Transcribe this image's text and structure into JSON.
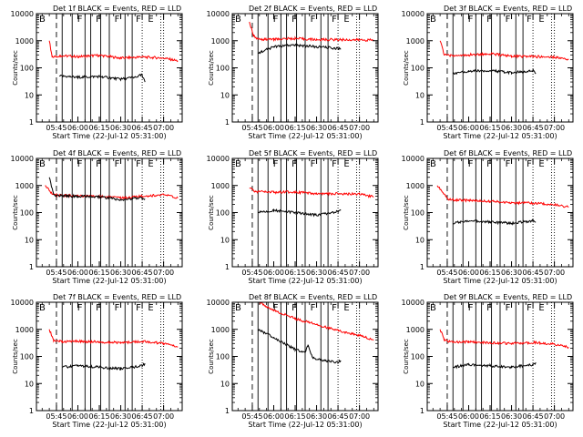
{
  "colors": {
    "events": "#000000",
    "lld": "#ff0000",
    "axes": "#000000",
    "background": "#ffffff"
  },
  "chart_data": {
    "type": "line",
    "layout": "3x3 grid",
    "shared": {
      "xlabel": "Start Time (22-Jul-12 05:31:00)",
      "ylabel": "Counts/sec",
      "yscale": "log",
      "ylim": [
        1,
        10000
      ],
      "xlim": [
        "05:31",
        "07:13"
      ],
      "xticks": [
        "05:45",
        "06:00",
        "06:15",
        "06:30",
        "06:45",
        "07:00"
      ],
      "yticks": [
        "1",
        "10",
        "100",
        "1000",
        "10000"
      ],
      "dashed_marker": "05:45",
      "solid_markers": [
        "05:49",
        "05:56",
        "06:05",
        "06:09",
        "06:16",
        "06:22",
        "06:33",
        "06:38"
      ],
      "dotted_markers": [
        "06:45",
        "06:58",
        "07:00"
      ],
      "letter_annotations": [
        "B",
        "F",
        "F",
        "F",
        "F",
        "E"
      ],
      "series_legend": {
        "black": "Events",
        "red": "LLD"
      }
    },
    "panels": [
      {
        "title": "Det 1f  BLACK = Events, RED = LLD",
        "series": [
          {
            "name": "LLD",
            "color": "red",
            "points": [
              [
                "05:40",
                1000
              ],
              [
                "05:42",
                250
              ],
              [
                "05:48",
                280
              ],
              [
                "06:00",
                260
              ],
              [
                "06:15",
                290
              ],
              [
                "06:30",
                230
              ],
              [
                "06:45",
                250
              ],
              [
                "07:00",
                230
              ],
              [
                "07:10",
                180
              ]
            ]
          },
          {
            "name": "Events",
            "color": "black",
            "points": [
              [
                "05:47",
                50
              ],
              [
                "06:00",
                45
              ],
              [
                "06:15",
                48
              ],
              [
                "06:30",
                38
              ],
              [
                "06:40",
                45
              ],
              [
                "06:45",
                55
              ],
              [
                "06:47",
                30
              ]
            ]
          }
        ]
      },
      {
        "title": "Det 2f  BLACK = Events, RED = LLD",
        "series": [
          {
            "name": "LLD",
            "color": "red",
            "points": [
              [
                "05:43",
                5000
              ],
              [
                "05:46",
                1500
              ],
              [
                "05:50",
                1100
              ],
              [
                "06:00",
                1150
              ],
              [
                "06:15",
                1200
              ],
              [
                "06:30",
                1100
              ],
              [
                "06:45",
                1100
              ],
              [
                "07:10",
                1050
              ]
            ]
          },
          {
            "name": "Events",
            "color": "black",
            "points": [
              [
                "05:49",
                350
              ],
              [
                "06:00",
                600
              ],
              [
                "06:15",
                700
              ],
              [
                "06:30",
                600
              ],
              [
                "06:45",
                520
              ],
              [
                "06:47",
                480
              ]
            ]
          }
        ]
      },
      {
        "title": "Det 3f  BLACK = Events, RED = LLD",
        "series": [
          {
            "name": "LLD",
            "color": "red",
            "points": [
              [
                "05:40",
                1000
              ],
              [
                "05:43",
                300
              ],
              [
                "05:50",
                280
              ],
              [
                "06:00",
                300
              ],
              [
                "06:15",
                330
              ],
              [
                "06:30",
                270
              ],
              [
                "06:45",
                260
              ],
              [
                "07:00",
                250
              ],
              [
                "07:10",
                200
              ]
            ]
          },
          {
            "name": "Events",
            "color": "black",
            "points": [
              [
                "05:49",
                60
              ],
              [
                "06:00",
                75
              ],
              [
                "06:15",
                80
              ],
              [
                "06:30",
                65
              ],
              [
                "06:45",
                80
              ],
              [
                "06:47",
                60
              ]
            ]
          }
        ]
      },
      {
        "title": "Det 4f  BLACK = Events, RED = LLD",
        "series": [
          {
            "name": "LLD",
            "color": "red",
            "points": [
              [
                "05:37",
                1000
              ],
              [
                "05:42",
                500
              ],
              [
                "05:46",
                430
              ],
              [
                "06:00",
                420
              ],
              [
                "06:15",
                400
              ],
              [
                "06:30",
                350
              ],
              [
                "06:45",
                400
              ],
              [
                "07:00",
                450
              ],
              [
                "07:10",
                350
              ]
            ]
          },
          {
            "name": "Events",
            "color": "black",
            "points": [
              [
                "05:40",
                2000
              ],
              [
                "05:43",
                450
              ],
              [
                "05:48",
                420
              ],
              [
                "06:00",
                400
              ],
              [
                "06:15",
                380
              ],
              [
                "06:30",
                300
              ],
              [
                "06:45",
                350
              ],
              [
                "06:47",
                320
              ]
            ]
          }
        ]
      },
      {
        "title": "Det 5f  BLACK = Events, RED = LLD",
        "series": [
          {
            "name": "LLD",
            "color": "red",
            "points": [
              [
                "05:43",
                800
              ],
              [
                "05:47",
                600
              ],
              [
                "06:00",
                560
              ],
              [
                "06:15",
                580
              ],
              [
                "06:30",
                480
              ],
              [
                "06:45",
                500
              ],
              [
                "07:00",
                480
              ],
              [
                "07:10",
                380
              ]
            ]
          },
          {
            "name": "Events",
            "color": "black",
            "points": [
              [
                "05:49",
                100
              ],
              [
                "06:00",
                120
              ],
              [
                "06:15",
                100
              ],
              [
                "06:30",
                80
              ],
              [
                "06:45",
                110
              ],
              [
                "06:47",
                120
              ]
            ]
          }
        ]
      },
      {
        "title": "Det 6f  BLACK = Events, RED = LLD",
        "series": [
          {
            "name": "LLD",
            "color": "red",
            "points": [
              [
                "05:38",
                1000
              ],
              [
                "05:44",
                400
              ],
              [
                "05:46",
                300
              ],
              [
                "06:00",
                280
              ],
              [
                "06:15",
                260
              ],
              [
                "06:30",
                230
              ],
              [
                "06:45",
                220
              ],
              [
                "07:00",
                200
              ],
              [
                "07:10",
                160
              ]
            ]
          },
          {
            "name": "Events",
            "color": "black",
            "points": [
              [
                "05:49",
                40
              ],
              [
                "06:00",
                50
              ],
              [
                "06:15",
                45
              ],
              [
                "06:30",
                40
              ],
              [
                "06:45",
                50
              ],
              [
                "06:47",
                45
              ]
            ]
          }
        ]
      },
      {
        "title": "Det 7f  BLACK = Events, RED = LLD",
        "series": [
          {
            "name": "LLD",
            "color": "red",
            "points": [
              [
                "05:40",
                1000
              ],
              [
                "05:43",
                400
              ],
              [
                "05:49",
                350
              ],
              [
                "06:00",
                360
              ],
              [
                "06:15",
                340
              ],
              [
                "06:30",
                320
              ],
              [
                "06:45",
                360
              ],
              [
                "07:00",
                300
              ],
              [
                "07:10",
                220
              ]
            ]
          },
          {
            "name": "Events",
            "color": "black",
            "points": [
              [
                "05:49",
                40
              ],
              [
                "06:00",
                45
              ],
              [
                "06:15",
                40
              ],
              [
                "06:30",
                35
              ],
              [
                "06:45",
                45
              ],
              [
                "06:47",
                55
              ]
            ]
          }
        ]
      },
      {
        "title": "Det 8f  BLACK = Events, RED = LLD",
        "series": [
          {
            "name": "LLD",
            "color": "red",
            "points": [
              [
                "05:50",
                10000
              ],
              [
                "06:00",
                5000
              ],
              [
                "06:15",
                2500
              ],
              [
                "06:30",
                1500
              ],
              [
                "06:45",
                900
              ],
              [
                "07:00",
                600
              ],
              [
                "07:10",
                400
              ]
            ]
          },
          {
            "name": "Events",
            "color": "black",
            "points": [
              [
                "05:49",
                1000
              ],
              [
                "06:00",
                500
              ],
              [
                "06:15",
                180
              ],
              [
                "06:22",
                140
              ],
              [
                "06:24",
                250
              ],
              [
                "06:27",
                90
              ],
              [
                "06:35",
                70
              ],
              [
                "06:45",
                60
              ],
              [
                "06:47",
                70
              ]
            ]
          }
        ]
      },
      {
        "title": "Det 9f  BLACK = Events, RED = LLD",
        "series": [
          {
            "name": "LLD",
            "color": "red",
            "points": [
              [
                "05:40",
                1000
              ],
              [
                "05:43",
                400
              ],
              [
                "05:49",
                330
              ],
              [
                "06:00",
                350
              ],
              [
                "06:15",
                320
              ],
              [
                "06:30",
                300
              ],
              [
                "06:45",
                330
              ],
              [
                "07:00",
                280
              ],
              [
                "07:10",
                220
              ]
            ]
          },
          {
            "name": "Events",
            "color": "black",
            "points": [
              [
                "05:49",
                40
              ],
              [
                "06:00",
                50
              ],
              [
                "06:15",
                45
              ],
              [
                "06:30",
                40
              ],
              [
                "06:45",
                50
              ],
              [
                "06:47",
                60
              ]
            ]
          }
        ]
      }
    ]
  }
}
